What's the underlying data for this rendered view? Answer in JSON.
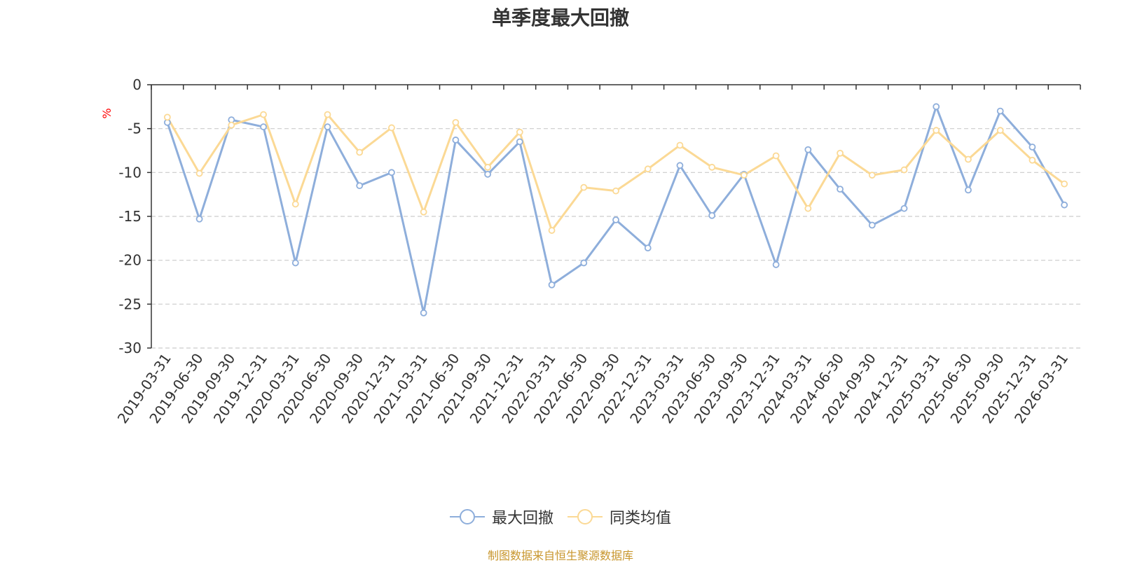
{
  "title": "单季度最大回撤",
  "source_note": "制图数据来自恒生聚源数据库",
  "colors": {
    "series1": "#8eaedb",
    "series2": "#fbd995",
    "unit": "#ff0000"
  },
  "chart_data": {
    "type": "line",
    "title": "单季度最大回撤",
    "ylabel": "%",
    "xlabel": "",
    "ylim": [
      -30,
      0
    ],
    "yticks": [
      0,
      -5,
      -10,
      -15,
      -20,
      -25,
      -30
    ],
    "grid": true,
    "legend_position": "bottom-center",
    "categories": [
      "2019-03-31",
      "2019-06-30",
      "2019-09-30",
      "2019-12-31",
      "2020-03-31",
      "2020-06-30",
      "2020-09-30",
      "2020-12-31",
      "2021-03-31",
      "2021-06-30",
      "2021-09-30",
      "2021-12-31",
      "2022-03-31",
      "2022-06-30",
      "2022-09-30",
      "2022-12-31",
      "2023-03-31",
      "2023-06-30",
      "2023-09-30",
      "2023-12-31",
      "2024-03-31",
      "2024-06-30",
      "2024-09-30",
      "2024-12-31",
      "2025-03-31",
      "2025-06-30",
      "2025-09-30",
      "2025-12-31",
      "2026-03-31"
    ],
    "series": [
      {
        "name": "最大回撤",
        "values": [
          -4.3,
          -15.3,
          -4.0,
          -4.8,
          -20.3,
          -4.8,
          -11.5,
          -10.0,
          -26.0,
          -6.3,
          -10.2,
          -6.5,
          -22.8,
          -20.3,
          -15.4,
          -18.6,
          -9.2,
          -14.9,
          -10.2,
          -20.5,
          -7.4,
          -11.9,
          -16.0,
          -14.1,
          -2.5,
          -12.0,
          -3.0,
          -7.1,
          -13.7
        ]
      },
      {
        "name": "同类均值",
        "values": [
          -3.7,
          -10.1,
          -4.6,
          -3.4,
          -13.6,
          -3.4,
          -7.7,
          -4.9,
          -14.5,
          -4.3,
          -9.4,
          -5.4,
          -16.6,
          -11.7,
          -12.1,
          -9.6,
          -6.9,
          -9.4,
          -10.3,
          -8.1,
          -14.1,
          -7.8,
          -10.3,
          -9.7,
          -5.2,
          -8.5,
          -5.2,
          -8.6,
          -11.3
        ]
      }
    ]
  }
}
